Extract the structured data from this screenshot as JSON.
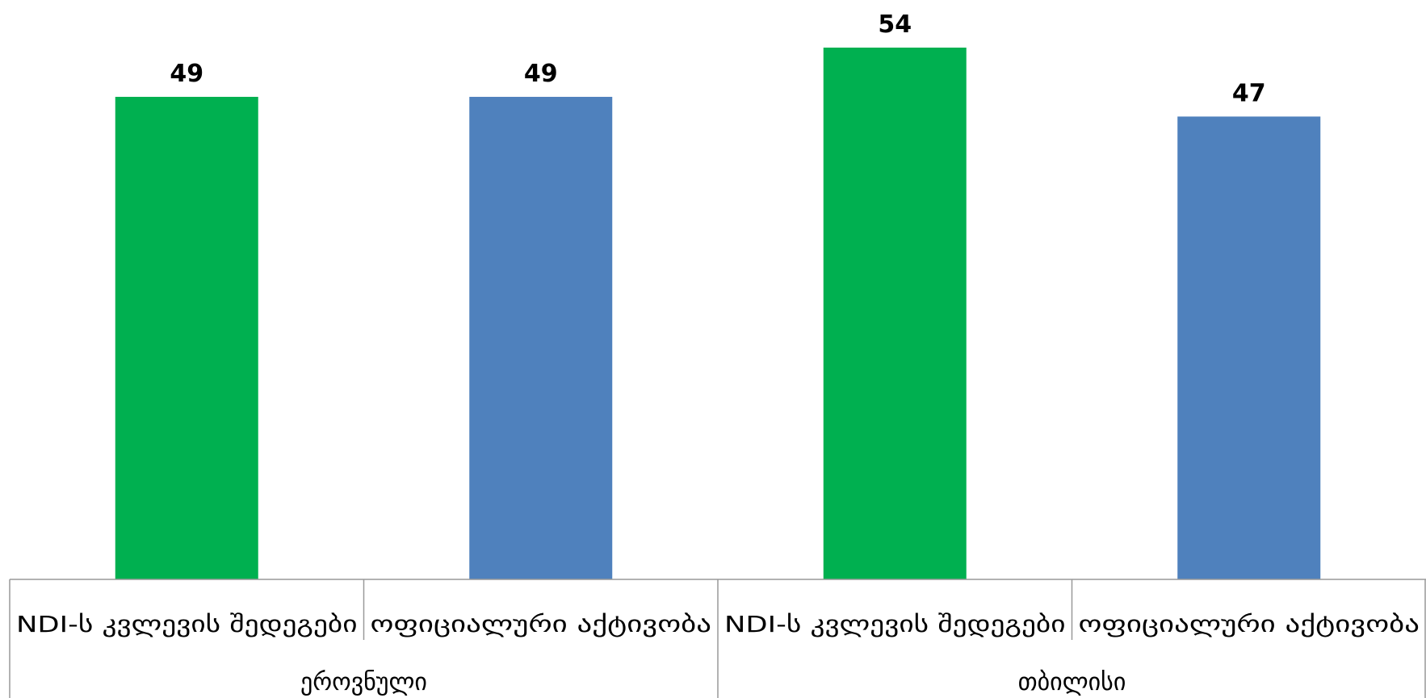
{
  "chart_data": {
    "type": "bar",
    "groups": [
      {
        "name": "ეროვნული",
        "bars": [
          {
            "category": "NDI-ს კვლევის შედეგები",
            "value": 49,
            "color": "#00B050"
          },
          {
            "category": "ოფიციალური აქტივობა",
            "value": 49,
            "color": "#4F81BD"
          }
        ]
      },
      {
        "name": "თბილისი",
        "bars": [
          {
            "category": "NDI-ს კვლევის შედეგები",
            "value": 54,
            "color": "#00B050"
          },
          {
            "category": "ოფიციალური აქტივობა",
            "value": 47,
            "color": "#4F81BD"
          }
        ]
      }
    ],
    "ylim": [
      0,
      54
    ],
    "grid": false,
    "legend": "none"
  }
}
